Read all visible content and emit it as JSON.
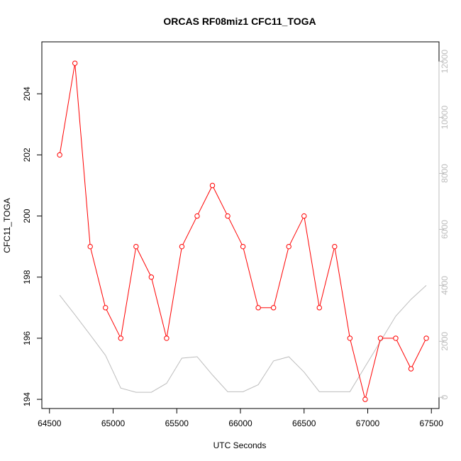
{
  "chart_data": {
    "type": "line",
    "title": "ORCAS RF08miz1 CFC11_TOGA",
    "xlabel": "UTC Seconds",
    "ylabel": "CFC11_TOGA",
    "xlim": [
      64440,
      67560
    ],
    "ylim": [
      193.7,
      205.7
    ],
    "ylim_right": [
      -400,
      12700
    ],
    "xticks": [
      64500,
      65000,
      65500,
      66000,
      66500,
      67000,
      67500
    ],
    "yticks": [
      194,
      196,
      198,
      200,
      202,
      204
    ],
    "yticks_right": [
      0,
      2000,
      4000,
      6000,
      8000,
      10000,
      12000
    ],
    "grid": false,
    "series": [
      {
        "color": "#ff0000",
        "axis": "left",
        "marker": "open-circle",
        "points": [
          [
            64580,
            202
          ],
          [
            64700,
            205
          ],
          [
            64820,
            199
          ],
          [
            64940,
            197
          ],
          [
            65060,
            196
          ],
          [
            65180,
            199
          ],
          [
            65300,
            198
          ],
          [
            65420,
            196
          ],
          [
            65540,
            199
          ],
          [
            65660,
            200
          ],
          [
            65780,
            201
          ],
          [
            65900,
            200
          ],
          [
            66020,
            199
          ],
          [
            66140,
            197
          ],
          [
            66260,
            197
          ],
          [
            66380,
            199
          ],
          [
            66500,
            200
          ],
          [
            66620,
            197
          ],
          [
            66740,
            199
          ],
          [
            66860,
            196
          ],
          [
            66980,
            194
          ],
          [
            67100,
            196
          ],
          [
            67220,
            196
          ],
          [
            67340,
            195
          ],
          [
            67460,
            196
          ]
        ]
      },
      {
        "color": "#bdbdbd",
        "axis": "right",
        "marker": "none",
        "points": [
          [
            64580,
            3650
          ],
          [
            64700,
            2950
          ],
          [
            64820,
            2230
          ],
          [
            64940,
            1500
          ],
          [
            65060,
            330
          ],
          [
            65180,
            180
          ],
          [
            65300,
            180
          ],
          [
            65420,
            500
          ],
          [
            65540,
            1400
          ],
          [
            65660,
            1450
          ],
          [
            65780,
            800
          ],
          [
            65900,
            200
          ],
          [
            66020,
            200
          ],
          [
            66140,
            450
          ],
          [
            66260,
            1300
          ],
          [
            66380,
            1450
          ],
          [
            66500,
            900
          ],
          [
            66620,
            200
          ],
          [
            66740,
            200
          ],
          [
            66860,
            200
          ],
          [
            66980,
            1100
          ],
          [
            67100,
            2000
          ],
          [
            67220,
            2900
          ],
          [
            67340,
            3500
          ],
          [
            67460,
            4000
          ]
        ]
      }
    ]
  }
}
